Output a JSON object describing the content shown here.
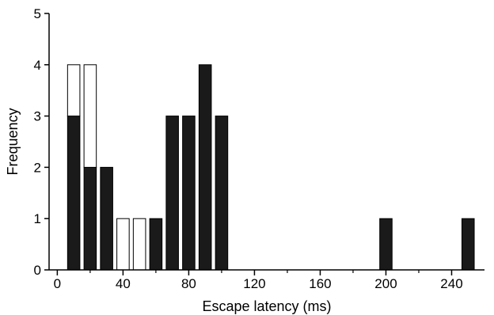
{
  "chart_data": {
    "type": "bar",
    "stacked": true,
    "xlabel": "Escape latency (ms)",
    "ylabel": "Frequency",
    "xlim": [
      -5,
      260
    ],
    "ylim": [
      0,
      5
    ],
    "x_ticks": [
      0,
      40,
      80,
      120,
      160,
      200,
      240
    ],
    "y_ticks": [
      0,
      1,
      2,
      3,
      4,
      5
    ],
    "bin_width": 10,
    "x": [
      10,
      20,
      30,
      40,
      50,
      60,
      70,
      80,
      90,
      100,
      200,
      250
    ],
    "series": [
      {
        "color": "#1a1a1a",
        "values": [
          3,
          2,
          2,
          0,
          0,
          1,
          3,
          3,
          4,
          3,
          1,
          1
        ]
      },
      {
        "color": "#ffffff",
        "values": [
          1,
          2,
          0,
          1,
          1,
          0,
          0,
          0,
          0,
          0,
          0,
          0
        ]
      }
    ]
  }
}
